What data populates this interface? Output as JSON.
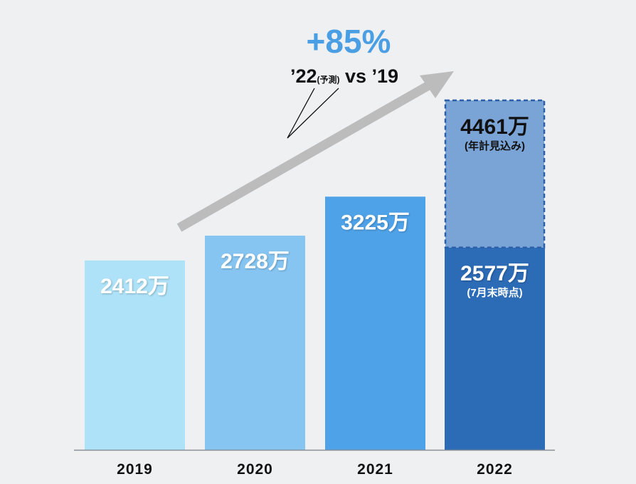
{
  "chart_data": {
    "type": "bar",
    "categories": [
      "2019",
      "2020",
      "2021",
      "2022"
    ],
    "series": [
      {
        "values": [
          2412,
          2728,
          3225,
          2577
        ],
        "value_labels": [
          "2412万",
          "2728万",
          "3225万",
          "2577万"
        ],
        "sub_labels": [
          "",
          "",
          "",
          "(7月末時点)"
        ],
        "colors": [
          "#aee2f8",
          "#86c5f2",
          "#4ea2e8",
          "#2c6bb6"
        ]
      },
      {
        "values": [
          0,
          0,
          0,
          1884
        ],
        "total_labels": [
          "",
          "",
          "",
          "4461万"
        ],
        "sub_labels": [
          "",
          "",
          "",
          "(年計見込み)"
        ],
        "colors": [
          "",
          "",
          "",
          "#7aa3d6"
        ],
        "style": "dashed-outline"
      }
    ],
    "ylim": [
      0,
      4800
    ],
    "title": "",
    "xlabel": "",
    "ylabel": "",
    "grid": false,
    "annotation": {
      "growth": "+85%",
      "comparison_a": "’22",
      "comparison_note": "(予測)",
      "comparison_b": " vs ’19",
      "color": "#4a9ee3"
    }
  }
}
